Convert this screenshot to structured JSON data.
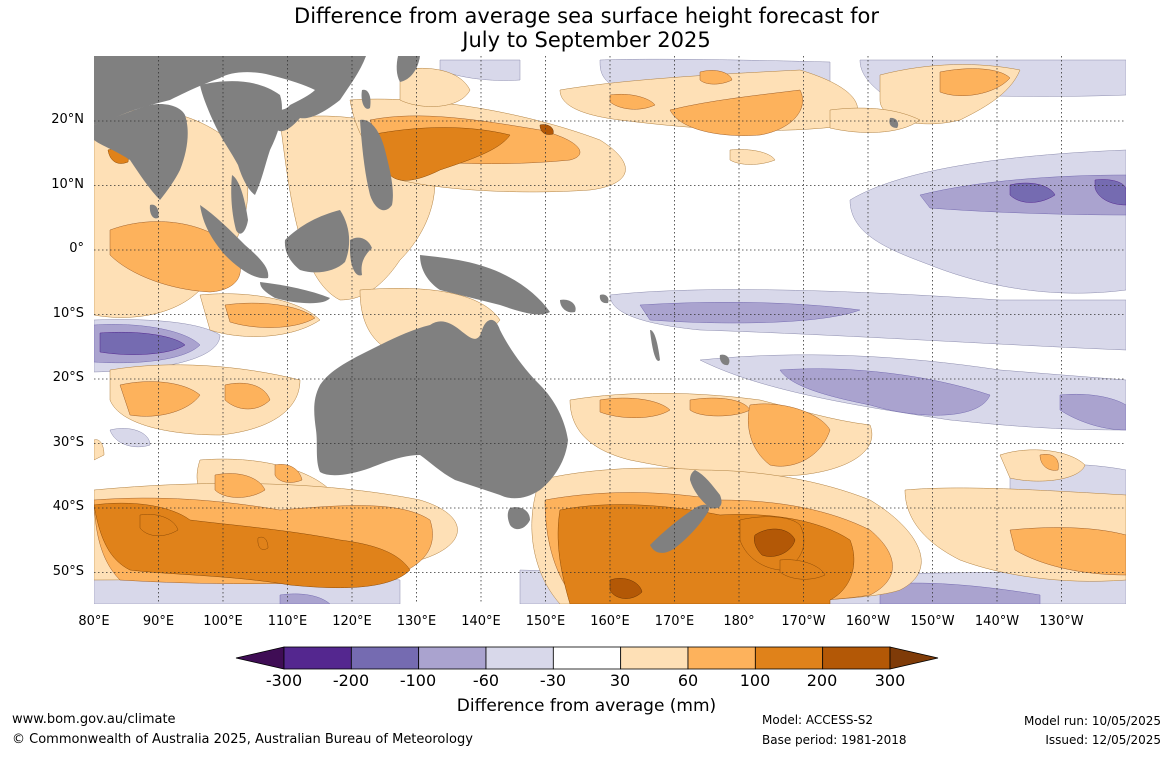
{
  "title": {
    "line1": "Difference from average sea surface height forecast for",
    "line2": "July to September 2025"
  },
  "map": {
    "type": "contour-map",
    "region": "Indo-Pacific",
    "lat_labels": [
      "20°N",
      "10°N",
      "0°",
      "10°S",
      "20°S",
      "30°S",
      "40°S",
      "50°S"
    ],
    "lat_values": [
      20,
      10,
      0,
      -10,
      -20,
      -30,
      -40,
      -50
    ],
    "lon_labels": [
      "80°E",
      "90°E",
      "100°E",
      "110°E",
      "120°E",
      "130°E",
      "140°E",
      "150°E",
      "160°E",
      "170°E",
      "180°",
      "170°W",
      "160°W",
      "150°W",
      "140°W",
      "130°W"
    ],
    "lon_values": [
      80,
      90,
      100,
      110,
      120,
      130,
      140,
      150,
      160,
      170,
      180,
      190,
      200,
      210,
      220,
      230
    ],
    "lat_range": [
      -55,
      30
    ],
    "lon_range": [
      80,
      240
    ],
    "land_color": "#808080"
  },
  "colorbar": {
    "title": "Difference from average (mm)",
    "tick_labels": [
      "-300",
      "-200",
      "-100",
      "-60",
      "-30",
      "30",
      "60",
      "100",
      "200",
      "300"
    ],
    "colors": [
      "#3f0d55",
      "#54278f",
      "#756bb1",
      "#aaa3cf",
      "#d8d8ea",
      "#ffffff",
      "#fee0b6",
      "#fdb25c",
      "#e0821a",
      "#b35806",
      "#7f3b08"
    ]
  },
  "footer": {
    "url": "www.bom.gov.au/climate",
    "copyright": "© Commonwealth of Australia 2025, Australian Bureau of Meteorology",
    "model": "Model: ACCESS-S2",
    "base_period": "Base period: 1981-2018",
    "model_run": "Model run: 10/05/2025",
    "issued": "Issued: 12/05/2025"
  }
}
